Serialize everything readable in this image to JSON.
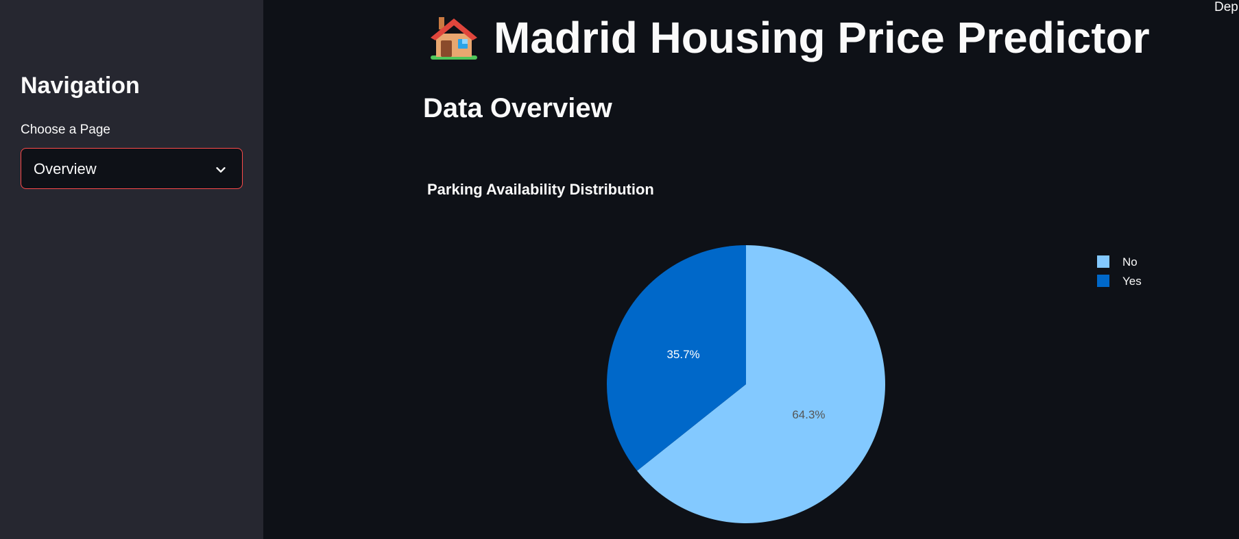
{
  "sidebar": {
    "title": "Navigation",
    "select_label": "Choose a Page",
    "select_value": "Overview"
  },
  "header": {
    "title": "Madrid Housing Price Predictor",
    "corner_text": "Dep"
  },
  "main": {
    "section_title": "Data Overview"
  },
  "chart_data": {
    "type": "pie",
    "title": "Parking Availability Distribution",
    "categories": [
      "No",
      "Yes"
    ],
    "values": [
      64.3,
      35.7
    ],
    "labels": [
      "64.3%",
      "35.7%"
    ],
    "colors": [
      "#83c9ff",
      "#0068c9"
    ],
    "label_colors": [
      "#555555",
      "#ffffff"
    ],
    "legend_placement": "top-right"
  },
  "colors": {
    "background": "#0e1117",
    "sidebar": "#262730",
    "accent": "#ff4b4b"
  }
}
